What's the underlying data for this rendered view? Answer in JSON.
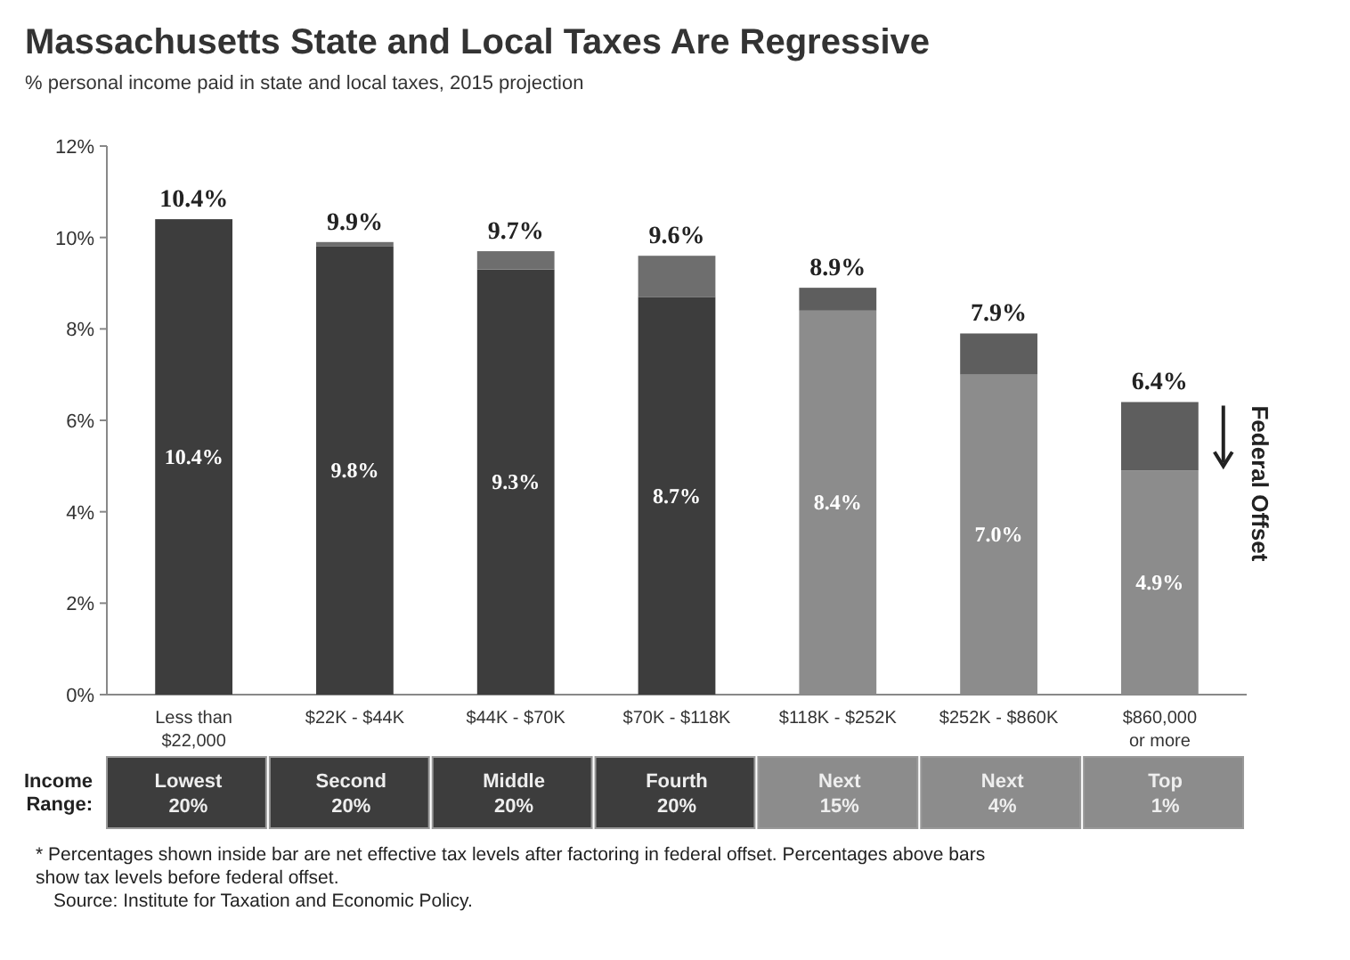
{
  "chart_data": {
    "type": "bar",
    "title": "Massachusetts State and Local Taxes Are Regressive",
    "subtitle": "% personal income paid in state and local taxes, 2015 projection",
    "categories": [
      "Less than $22,000",
      "$22K - $44K",
      "$44K - $70K",
      "$70K - $118K",
      "$118K - $252K",
      "$252K - $860K",
      "$860,000 or more"
    ],
    "stacked": true,
    "grid": false,
    "series": [
      {
        "colors": [
          "#3d3d3d",
          "#3d3d3d",
          "#3d3d3d",
          "#3d3d3d",
          "#8c8c8c",
          "#8c8c8c",
          "#8c8c8c"
        ],
        "values": [
          10.4,
          9.8,
          9.3,
          8.7,
          8.4,
          7.0,
          4.9
        ],
        "value_labels": [
          "10.4%",
          "9.8%",
          "9.3%",
          "8.7%",
          "8.4%",
          "7.0%",
          "4.9%"
        ]
      },
      {
        "colors": [
          "#6e6e6e",
          "#6e6e6e",
          "#6e6e6e",
          "#6e6e6e",
          "#5e5e5e",
          "#5e5e5e",
          "#5e5e5e"
        ],
        "values": [
          0,
          0.1,
          0.4,
          0.9,
          0.5,
          0.9,
          1.5
        ]
      }
    ],
    "totals": [
      "10.4%",
      "9.9%",
      "9.7%",
      "9.6%",
      "8.9%",
      "7.9%",
      "6.4%"
    ],
    "ylim": [
      0,
      12
    ],
    "yticks": [
      {
        "value": 0,
        "label": "0%"
      },
      {
        "value": 2,
        "label": "2%"
      },
      {
        "value": 4,
        "label": "4%"
      },
      {
        "value": 6,
        "label": "6%"
      },
      {
        "value": 8,
        "label": "8%"
      },
      {
        "value": 10,
        "label": "10%"
      },
      {
        "value": 12,
        "label": "12%"
      }
    ],
    "annotations": [
      "Income Range:",
      "Lowest 20%",
      "Second 20%",
      "Middle 20%",
      "Fourth 20%",
      "Next 15%",
      "Next 4%",
      "Top 1%",
      "Federal Offset",
      "* Percentages shown inside bar are net effective tax levels after factoring in federal offset. Percentages above bars show  tax levels before federal offset.",
      "Source: Institute for Taxation and Economic Policy."
    ]
  }
}
